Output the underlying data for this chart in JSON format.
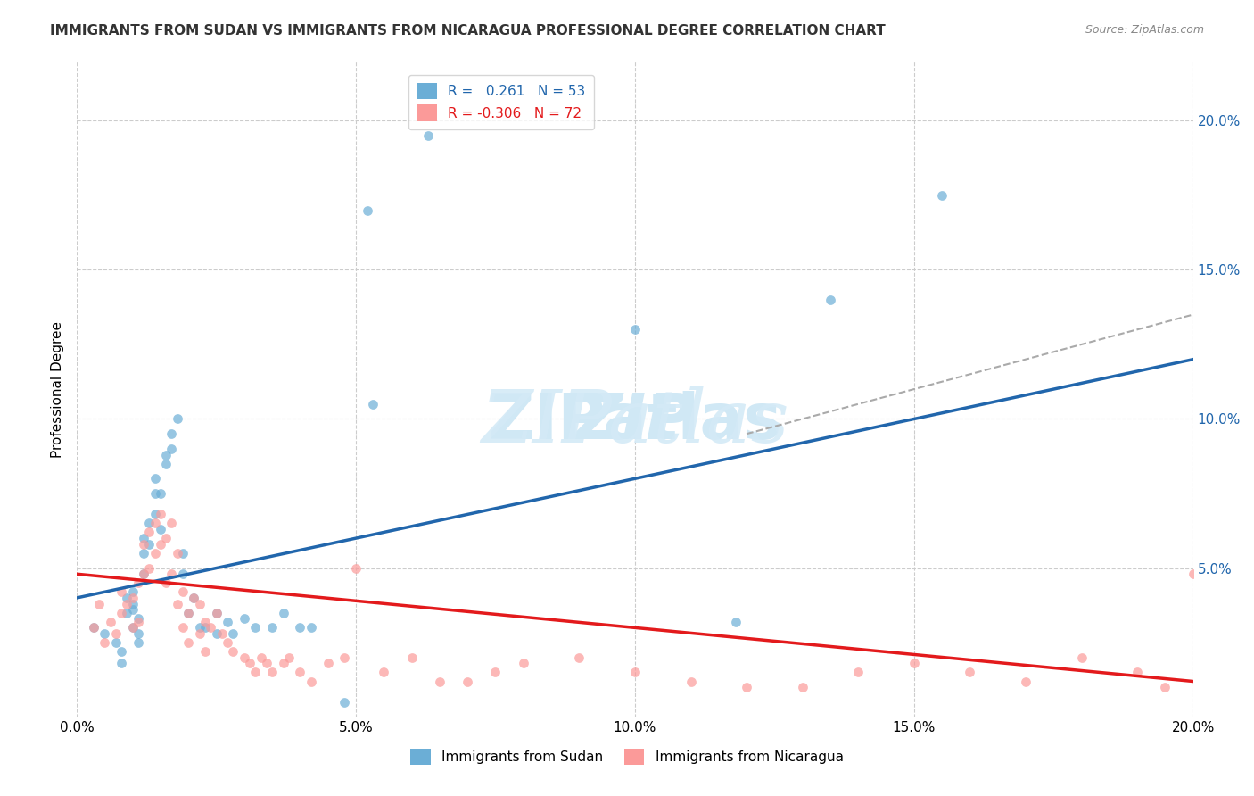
{
  "title": "IMMIGRANTS FROM SUDAN VS IMMIGRANTS FROM NICARAGUA PROFESSIONAL DEGREE CORRELATION CHART",
  "source": "Source: ZipAtlas.com",
  "xlabel": "",
  "ylabel": "Professional Degree",
  "xlim": [
    0.0,
    0.2
  ],
  "ylim": [
    0.0,
    0.22
  ],
  "x_tick_labels": [
    "0.0%",
    "5.0%",
    "10.0%",
    "15.0%",
    "20.0%"
  ],
  "x_tick_vals": [
    0.0,
    0.05,
    0.1,
    0.15,
    0.2
  ],
  "y_tick_labels_right": [
    "20.0%",
    "15.0%",
    "10.0%",
    "5.0%"
  ],
  "sudan_color": "#6baed6",
  "nicaragua_color": "#fb9a99",
  "sudan_R": 0.261,
  "sudan_N": 53,
  "nicaragua_R": -0.306,
  "nicaragua_N": 72,
  "background_color": "#ffffff",
  "grid_color": "#cccccc",
  "watermark_text": "ZIPatlas",
  "watermark_color": "#d0e8f5",
  "title_fontsize": 11,
  "axis_label_fontsize": 10,
  "legend_fontsize": 10,
  "sudan_scatter_x": [
    0.003,
    0.005,
    0.007,
    0.008,
    0.008,
    0.009,
    0.009,
    0.01,
    0.01,
    0.01,
    0.01,
    0.011,
    0.011,
    0.011,
    0.012,
    0.012,
    0.012,
    0.013,
    0.013,
    0.014,
    0.014,
    0.014,
    0.015,
    0.015,
    0.016,
    0.016,
    0.017,
    0.017,
    0.018,
    0.019,
    0.019,
    0.02,
    0.021,
    0.022,
    0.023,
    0.025,
    0.025,
    0.027,
    0.028,
    0.03,
    0.032,
    0.035,
    0.037,
    0.04,
    0.042,
    0.048,
    0.052,
    0.053,
    0.063,
    0.1,
    0.118,
    0.135,
    0.155
  ],
  "sudan_scatter_y": [
    0.03,
    0.028,
    0.025,
    0.022,
    0.018,
    0.035,
    0.04,
    0.042,
    0.038,
    0.036,
    0.03,
    0.033,
    0.028,
    0.025,
    0.055,
    0.048,
    0.06,
    0.065,
    0.058,
    0.068,
    0.075,
    0.08,
    0.075,
    0.063,
    0.085,
    0.088,
    0.09,
    0.095,
    0.1,
    0.055,
    0.048,
    0.035,
    0.04,
    0.03,
    0.03,
    0.035,
    0.028,
    0.032,
    0.028,
    0.033,
    0.03,
    0.03,
    0.035,
    0.03,
    0.03,
    0.005,
    0.17,
    0.105,
    0.195,
    0.13,
    0.032,
    0.14,
    0.175
  ],
  "nicaragua_scatter_x": [
    0.003,
    0.004,
    0.005,
    0.006,
    0.007,
    0.008,
    0.008,
    0.009,
    0.01,
    0.01,
    0.011,
    0.011,
    0.012,
    0.012,
    0.013,
    0.013,
    0.014,
    0.014,
    0.015,
    0.015,
    0.016,
    0.016,
    0.017,
    0.017,
    0.018,
    0.018,
    0.019,
    0.019,
    0.02,
    0.02,
    0.021,
    0.022,
    0.022,
    0.023,
    0.023,
    0.024,
    0.025,
    0.026,
    0.027,
    0.028,
    0.03,
    0.031,
    0.032,
    0.033,
    0.034,
    0.035,
    0.037,
    0.038,
    0.04,
    0.042,
    0.045,
    0.048,
    0.05,
    0.055,
    0.06,
    0.065,
    0.07,
    0.075,
    0.08,
    0.09,
    0.1,
    0.11,
    0.12,
    0.13,
    0.14,
    0.15,
    0.16,
    0.17,
    0.18,
    0.19,
    0.195,
    0.2
  ],
  "nicaragua_scatter_y": [
    0.03,
    0.038,
    0.025,
    0.032,
    0.028,
    0.035,
    0.042,
    0.038,
    0.04,
    0.03,
    0.045,
    0.032,
    0.058,
    0.048,
    0.062,
    0.05,
    0.065,
    0.055,
    0.068,
    0.058,
    0.06,
    0.045,
    0.065,
    0.048,
    0.055,
    0.038,
    0.042,
    0.03,
    0.035,
    0.025,
    0.04,
    0.038,
    0.028,
    0.032,
    0.022,
    0.03,
    0.035,
    0.028,
    0.025,
    0.022,
    0.02,
    0.018,
    0.015,
    0.02,
    0.018,
    0.015,
    0.018,
    0.02,
    0.015,
    0.012,
    0.018,
    0.02,
    0.05,
    0.015,
    0.02,
    0.012,
    0.012,
    0.015,
    0.018,
    0.02,
    0.015,
    0.012,
    0.01,
    0.01,
    0.015,
    0.018,
    0.015,
    0.012,
    0.02,
    0.015,
    0.01,
    0.048
  ],
  "sudan_line_x": [
    0.0,
    0.2
  ],
  "sudan_line_y_start": 0.04,
  "sudan_line_y_end": 0.12,
  "nicaragua_line_x": [
    0.0,
    0.2
  ],
  "nicaragua_line_y_start": 0.048,
  "nicaragua_line_y_end": 0.012,
  "extrapolation_line_x": [
    0.12,
    0.2
  ],
  "extrapolation_line_y_start": 0.095,
  "extrapolation_line_y_end": 0.135
}
